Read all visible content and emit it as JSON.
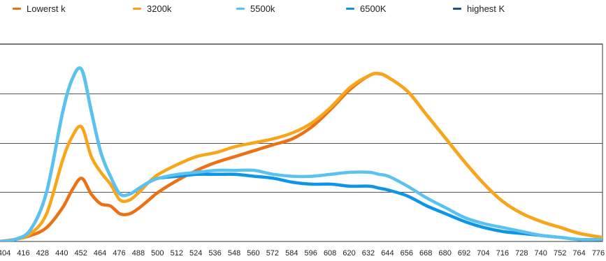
{
  "chart_data": {
    "type": "line",
    "title": "",
    "xlabel": "",
    "ylabel": "",
    "x_ticks": [
      "404",
      "416",
      "428",
      "440",
      "452",
      "464",
      "476",
      "488",
      "500",
      "512",
      "524",
      "536",
      "548",
      "560",
      "572",
      "584",
      "596",
      "608",
      "620",
      "632",
      "644",
      "656",
      "668",
      "680",
      "692",
      "704",
      "716",
      "728",
      "740",
      "752",
      "764",
      "776"
    ],
    "xlim": [
      400,
      778
    ],
    "ylim": [
      0,
      1
    ],
    "y_gridlines": [
      0.25,
      0.5,
      0.75,
      1.0
    ],
    "grid": "horizontal",
    "legend_position": "top",
    "series": [
      {
        "name": "Lowerst k",
        "color": "#ec7014",
        "x": [
          400,
          410,
          420,
          430,
          440,
          446,
          452,
          458,
          464,
          470,
          476,
          482,
          488,
          494,
          500,
          512,
          524,
          536,
          548,
          560,
          572,
          584,
          596,
          608,
          620,
          632,
          638,
          644,
          656,
          668,
          680,
          692,
          704,
          716,
          728,
          740,
          752,
          764,
          778
        ],
        "y": [
          0.0,
          0.01,
          0.03,
          0.07,
          0.17,
          0.26,
          0.32,
          0.24,
          0.19,
          0.18,
          0.14,
          0.14,
          0.17,
          0.21,
          0.25,
          0.31,
          0.36,
          0.4,
          0.43,
          0.46,
          0.49,
          0.52,
          0.58,
          0.67,
          0.77,
          0.84,
          0.85,
          0.83,
          0.76,
          0.64,
          0.52,
          0.4,
          0.29,
          0.2,
          0.14,
          0.1,
          0.07,
          0.04,
          0.02
        ]
      },
      {
        "name": "3200k",
        "color": "#f9a51a",
        "x": [
          400,
          410,
          420,
          430,
          440,
          446,
          452,
          458,
          464,
          470,
          476,
          482,
          488,
          494,
          500,
          512,
          524,
          536,
          548,
          560,
          572,
          584,
          596,
          608,
          620,
          632,
          638,
          644,
          656,
          668,
          680,
          692,
          704,
          716,
          728,
          740,
          752,
          764,
          778
        ],
        "y": [
          0.0,
          0.01,
          0.04,
          0.14,
          0.41,
          0.53,
          0.58,
          0.43,
          0.35,
          0.29,
          0.21,
          0.21,
          0.25,
          0.3,
          0.34,
          0.39,
          0.43,
          0.45,
          0.48,
          0.5,
          0.52,
          0.55,
          0.6,
          0.68,
          0.78,
          0.84,
          0.85,
          0.83,
          0.76,
          0.64,
          0.52,
          0.4,
          0.29,
          0.2,
          0.14,
          0.1,
          0.07,
          0.04,
          0.02
        ]
      },
      {
        "name": "5500k",
        "color": "#5bc2f0",
        "x": [
          400,
          410,
          420,
          430,
          440,
          446,
          452,
          458,
          464,
          470,
          476,
          482,
          488,
          494,
          500,
          512,
          524,
          536,
          548,
          560,
          572,
          584,
          596,
          608,
          620,
          632,
          638,
          644,
          656,
          668,
          680,
          692,
          704,
          716,
          728,
          740,
          752,
          764,
          778
        ],
        "y": [
          0.0,
          0.01,
          0.06,
          0.25,
          0.65,
          0.82,
          0.87,
          0.66,
          0.45,
          0.33,
          0.24,
          0.24,
          0.27,
          0.3,
          0.32,
          0.34,
          0.35,
          0.36,
          0.36,
          0.36,
          0.34,
          0.33,
          0.33,
          0.34,
          0.35,
          0.35,
          0.34,
          0.33,
          0.28,
          0.22,
          0.17,
          0.12,
          0.09,
          0.07,
          0.05,
          0.03,
          0.02,
          0.01,
          0.01
        ]
      },
      {
        "name": "6500K",
        "color": "#0d95e8",
        "x": [
          400,
          410,
          420,
          430,
          440,
          446,
          452,
          458,
          464,
          470,
          476,
          482,
          488,
          494,
          500,
          512,
          524,
          536,
          548,
          560,
          572,
          584,
          596,
          608,
          620,
          632,
          638,
          644,
          656,
          668,
          680,
          692,
          704,
          716,
          728,
          740,
          752,
          764,
          778
        ],
        "y": [
          0.0,
          0.01,
          0.06,
          0.25,
          0.65,
          0.82,
          0.87,
          0.66,
          0.45,
          0.33,
          0.24,
          0.24,
          0.27,
          0.3,
          0.32,
          0.33,
          0.34,
          0.34,
          0.34,
          0.33,
          0.32,
          0.3,
          0.29,
          0.29,
          0.28,
          0.28,
          0.27,
          0.26,
          0.23,
          0.18,
          0.14,
          0.1,
          0.07,
          0.05,
          0.04,
          0.03,
          0.02,
          0.01,
          0.01
        ]
      },
      {
        "name": "highest K",
        "color": "#1b4e8c",
        "x": [],
        "y": []
      }
    ]
  }
}
